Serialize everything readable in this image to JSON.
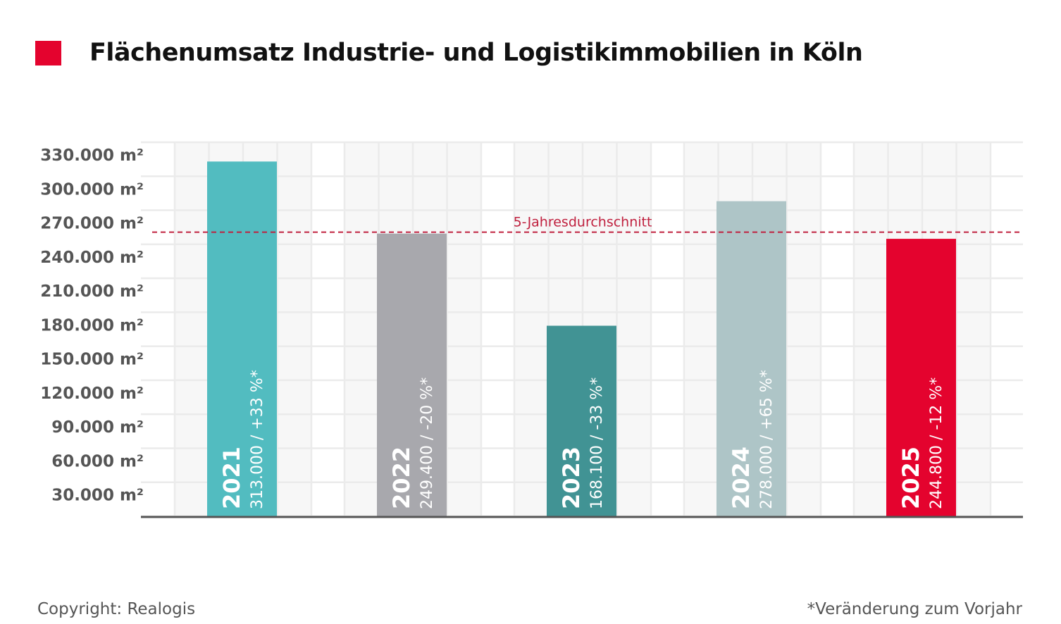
{
  "title": "Flächenumsatz Industrie- und Logistikimmobilien in Köln",
  "accent_color": "#e4032e",
  "footer": {
    "copyright": "Copyright: Realogis",
    "note": "*Veränderung zum Vorjahr"
  },
  "chart_data": {
    "type": "bar",
    "title": "Flächenumsatz Industrie- und Logistikimmobilien in Köln",
    "categories": [
      "2021",
      "2022",
      "2023",
      "2024",
      "2025"
    ],
    "values": [
      313000,
      249400,
      168100,
      278000,
      244800
    ],
    "bar_labels": [
      "313.000 / +33 %*",
      "249.400 / -20 %*",
      "168.100 / -33 %*",
      "278.000 / +65 %*",
      "244.800 / -12 %*"
    ],
    "colors": [
      "#52bcc0",
      "#a8a8ad",
      "#419394",
      "#aec5c7",
      "#e4032e"
    ],
    "ylim": [
      0,
      330000
    ],
    "yticks": [
      30000,
      60000,
      90000,
      120000,
      150000,
      180000,
      210000,
      240000,
      270000,
      300000,
      330000
    ],
    "ytick_labels": [
      "30.000 m²",
      "60.000 m²",
      "90.000 m²",
      "120.000 m²",
      "150.000 m²",
      "180.000 m²",
      "210.000 m²",
      "240.000 m²",
      "270.000 m²",
      "300.000 m²",
      "330.000 m²"
    ],
    "reference_line": {
      "label": "5-Jahresdurchschnitt",
      "value": 250660,
      "color": "#c0213f",
      "style": "dashed"
    },
    "grid": true
  }
}
